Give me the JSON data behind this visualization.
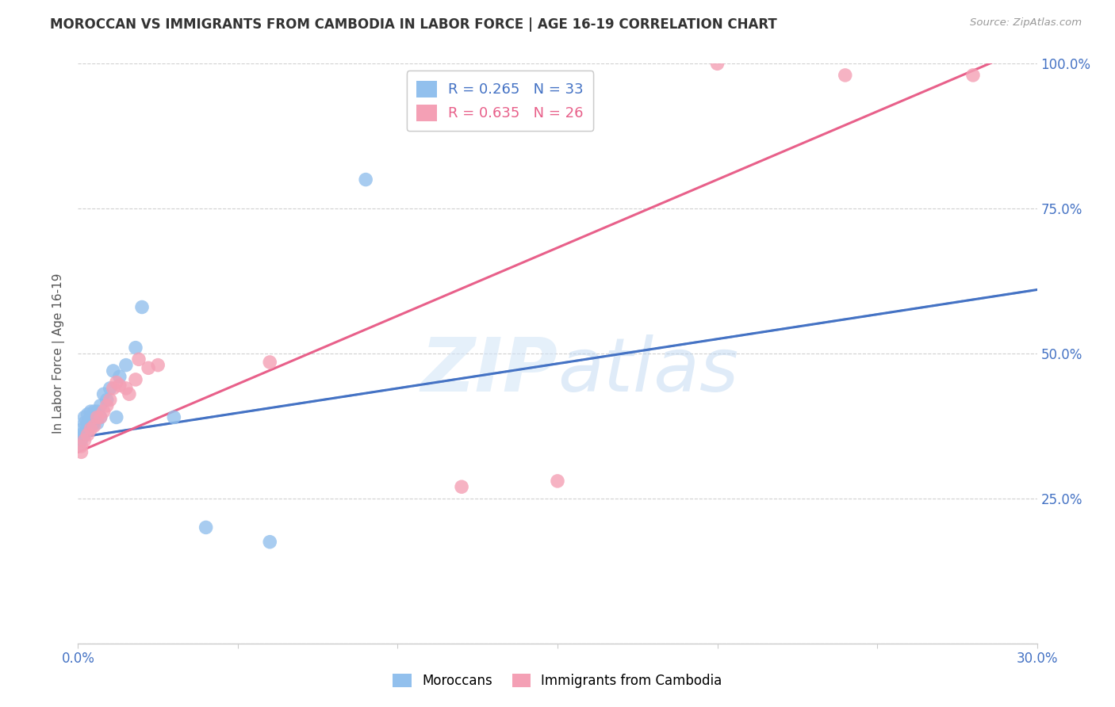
{
  "title": "MOROCCAN VS IMMIGRANTS FROM CAMBODIA IN LABOR FORCE | AGE 16-19 CORRELATION CHART",
  "source": "Source: ZipAtlas.com",
  "ylabel": "In Labor Force | Age 16-19",
  "x_min": 0.0,
  "x_max": 0.3,
  "y_min": 0.0,
  "y_max": 1.0,
  "x_ticks": [
    0.0,
    0.05,
    0.1,
    0.15,
    0.2,
    0.25,
    0.3
  ],
  "x_tick_labels": [
    "0.0%",
    "",
    "",
    "",
    "",
    "",
    "30.0%"
  ],
  "y_ticks": [
    0.0,
    0.25,
    0.5,
    0.75,
    1.0
  ],
  "y_tick_labels_right": [
    "",
    "25.0%",
    "50.0%",
    "75.0%",
    "100.0%"
  ],
  "moroccan_R": 0.265,
  "moroccan_N": 33,
  "cambodian_R": 0.635,
  "cambodian_N": 26,
  "moroccan_color": "#92c0ed",
  "cambodian_color": "#f4a0b5",
  "moroccan_line_color": "#4472c4",
  "moroccan_dash_color": "#a0bce0",
  "cambodian_line_color": "#e8608a",
  "legend_moroccan_label": "Moroccans",
  "legend_cambodian_label": "Immigrants from Cambodia",
  "moroccan_x": [
    0.0005,
    0.001,
    0.001,
    0.0015,
    0.002,
    0.002,
    0.002,
    0.003,
    0.003,
    0.003,
    0.003,
    0.004,
    0.004,
    0.004,
    0.005,
    0.005,
    0.006,
    0.006,
    0.007,
    0.007,
    0.008,
    0.009,
    0.01,
    0.011,
    0.012,
    0.013,
    0.015,
    0.018,
    0.02,
    0.03,
    0.04,
    0.06,
    0.09
  ],
  "moroccan_y": [
    0.345,
    0.35,
    0.36,
    0.37,
    0.36,
    0.38,
    0.39,
    0.37,
    0.375,
    0.38,
    0.395,
    0.375,
    0.39,
    0.4,
    0.38,
    0.4,
    0.38,
    0.4,
    0.39,
    0.41,
    0.43,
    0.42,
    0.44,
    0.47,
    0.39,
    0.46,
    0.48,
    0.51,
    0.58,
    0.39,
    0.2,
    0.175,
    0.8
  ],
  "cambodian_x": [
    0.001,
    0.001,
    0.002,
    0.003,
    0.004,
    0.005,
    0.006,
    0.007,
    0.008,
    0.009,
    0.01,
    0.011,
    0.012,
    0.013,
    0.015,
    0.016,
    0.018,
    0.019,
    0.022,
    0.025,
    0.06,
    0.12,
    0.15,
    0.2,
    0.24,
    0.28
  ],
  "cambodian_y": [
    0.33,
    0.34,
    0.35,
    0.36,
    0.37,
    0.375,
    0.39,
    0.39,
    0.4,
    0.41,
    0.42,
    0.44,
    0.45,
    0.445,
    0.44,
    0.43,
    0.455,
    0.49,
    0.475,
    0.48,
    0.485,
    0.27,
    0.28,
    1.0,
    0.98,
    0.98
  ],
  "moroccan_line_intercept": 0.355,
  "moroccan_line_slope": 0.85,
  "cambodian_line_intercept": 0.33,
  "cambodian_line_slope": 2.35
}
